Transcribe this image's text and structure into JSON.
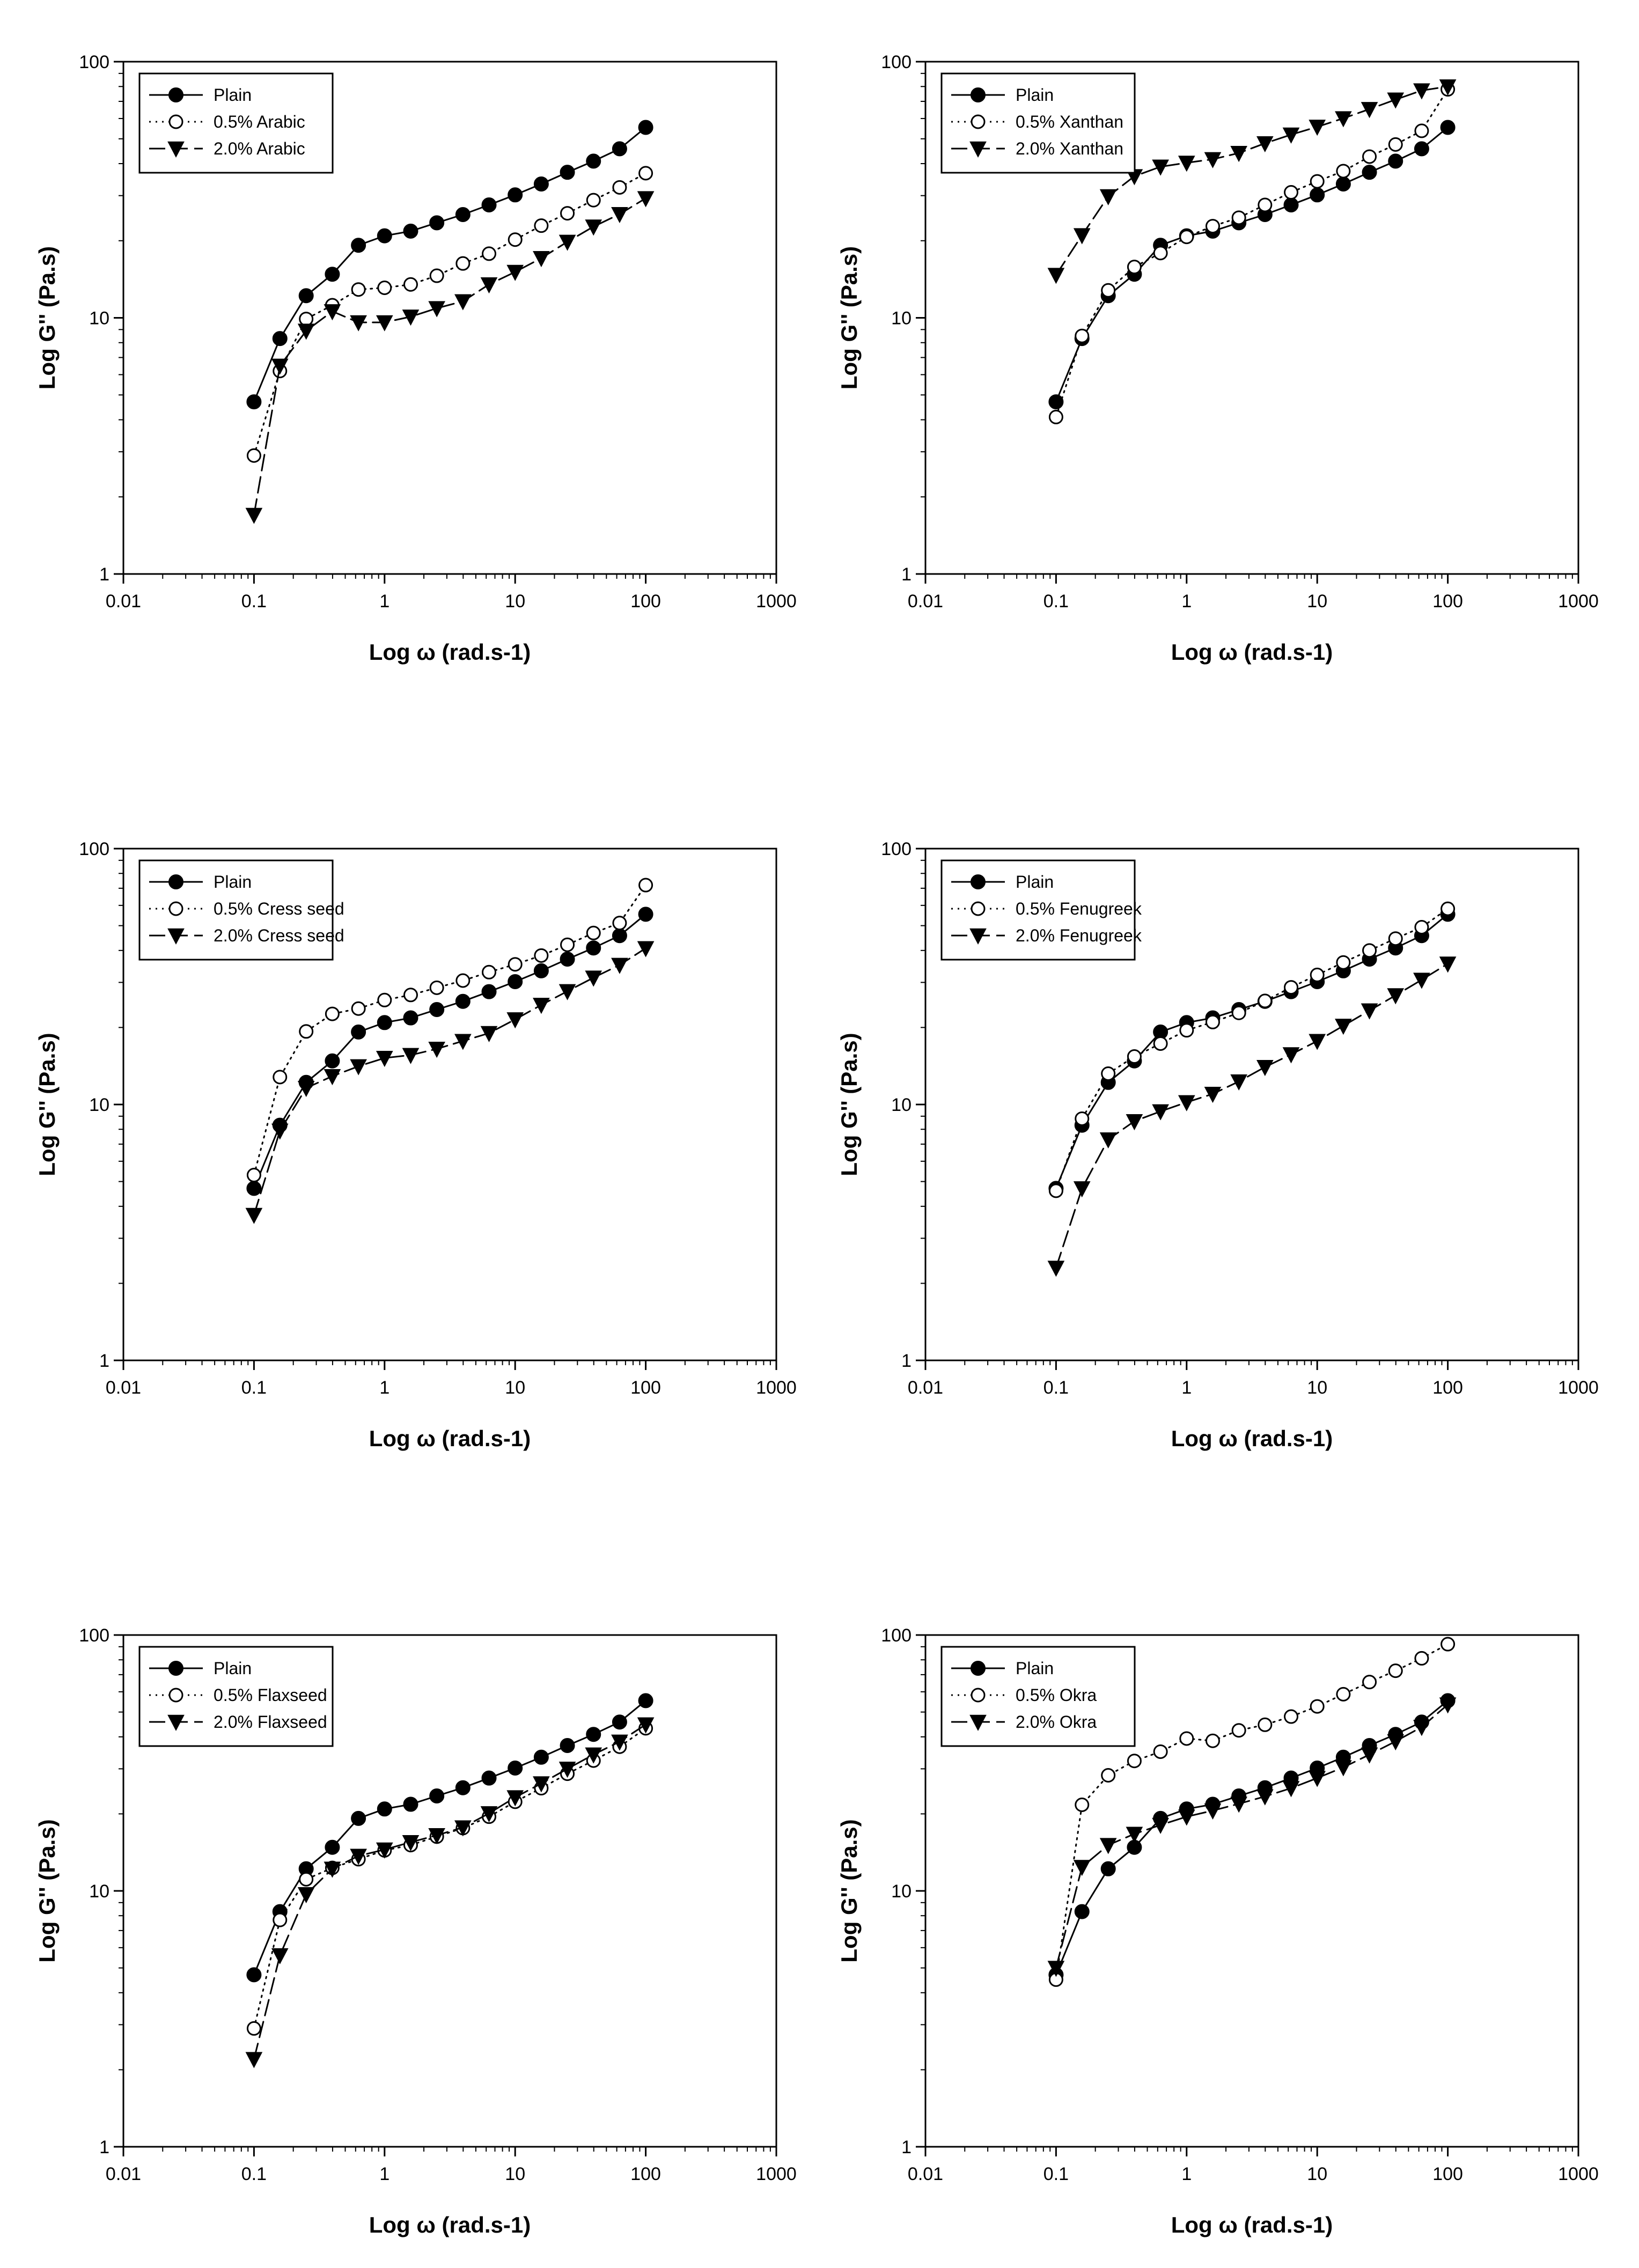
{
  "chart_data": [
    {
      "type": "line",
      "title": "",
      "xlabel": "Log ω (rad.s-1)",
      "ylabel": "Log  G'' (Pa.s)",
      "xscale": "log",
      "yscale": "log",
      "xlim": [
        0.01,
        1000
      ],
      "ylim": [
        1,
        100
      ],
      "xticks": [
        "0.01",
        "0.1",
        "1",
        "10",
        "100",
        "1000"
      ],
      "yticks": [
        "1",
        "10",
        "100"
      ],
      "legend_position": "top-left",
      "x": [
        0.1,
        0.158,
        0.251,
        0.398,
        0.631,
        1,
        1.585,
        2.512,
        3.981,
        6.31,
        10,
        15.85,
        25.12,
        39.81,
        63.1,
        100
      ],
      "series": [
        {
          "name": "Plain",
          "marker": "filled-circle",
          "line": "solid",
          "values": [
            4.7,
            8.3,
            12.2,
            14.8,
            19.2,
            20.9,
            21.8,
            23.5,
            25.3,
            27.6,
            30.2,
            33.3,
            37.0,
            40.9,
            45.7,
            55.4
          ]
        },
        {
          "name": "0.5% Arabic",
          "marker": "open-circle",
          "line": "dotted",
          "values": [
            2.9,
            6.2,
            9.9,
            11.2,
            12.9,
            13.1,
            13.5,
            14.6,
            16.3,
            17.8,
            20.2,
            22.9,
            25.6,
            28.8,
            32.3,
            36.7
          ]
        },
        {
          "name": "2.0% Arabic",
          "marker": "filled-triangle-down",
          "line": "dashed",
          "values": [
            1.7,
            6.5,
            8.9,
            10.6,
            9.6,
            9.6,
            10.1,
            10.9,
            11.6,
            13.5,
            15.1,
            17.1,
            19.8,
            22.7,
            25.4,
            29.3
          ]
        }
      ]
    },
    {
      "type": "line",
      "title": "",
      "xlabel": "Log ω (rad.s-1)",
      "ylabel": "Log  G'' (Pa.s)",
      "xscale": "log",
      "yscale": "log",
      "xlim": [
        0.01,
        1000
      ],
      "ylim": [
        1,
        100
      ],
      "xticks": [
        "0.01",
        "0.1",
        "1",
        "10",
        "100",
        "1000"
      ],
      "yticks": [
        "1",
        "10",
        "100"
      ],
      "legend_position": "top-left",
      "x": [
        0.1,
        0.158,
        0.251,
        0.398,
        0.631,
        1,
        1.585,
        2.512,
        3.981,
        6.31,
        10,
        15.85,
        25.12,
        39.81,
        63.1,
        100
      ],
      "series": [
        {
          "name": "Plain",
          "marker": "filled-circle",
          "line": "solid",
          "values": [
            4.7,
            8.3,
            12.2,
            14.8,
            19.2,
            20.9,
            21.8,
            23.5,
            25.3,
            27.6,
            30.2,
            33.3,
            37.0,
            40.9,
            45.7,
            55.4
          ]
        },
        {
          "name": "0.5% Xanthan",
          "marker": "open-circle",
          "line": "dotted",
          "values": [
            4.1,
            8.5,
            12.8,
            15.8,
            17.9,
            20.7,
            22.8,
            24.6,
            27.6,
            30.9,
            34.1,
            37.4,
            42.6,
            47.5,
            53.7,
            78.0
          ]
        },
        {
          "name": "2.0% Xanthan",
          "marker": "filled-triangle-down",
          "line": "dashed",
          "values": [
            14.7,
            21.0,
            29.8,
            35.7,
            38.9,
            40.3,
            41.6,
            44.0,
            48.0,
            51.9,
            55.7,
            60.1,
            65.3,
            71.1,
            77.2,
            80.0
          ]
        }
      ]
    },
    {
      "type": "line",
      "title": "",
      "xlabel": "Log ω (rad.s-1)",
      "ylabel": "Log  G'' (Pa.s)",
      "xscale": "log",
      "yscale": "log",
      "xlim": [
        0.01,
        1000
      ],
      "ylim": [
        1,
        100
      ],
      "xticks": [
        "0.01",
        "0.1",
        "1",
        "10",
        "100",
        "1000"
      ],
      "yticks": [
        "1",
        "10",
        "100"
      ],
      "legend_position": "top-left",
      "x": [
        0.1,
        0.158,
        0.251,
        0.398,
        0.631,
        1,
        1.585,
        2.512,
        3.981,
        6.31,
        10,
        15.85,
        25.12,
        39.81,
        63.1,
        100
      ],
      "series": [
        {
          "name": "Plain",
          "marker": "filled-circle",
          "line": "solid",
          "values": [
            4.7,
            8.3,
            12.2,
            14.8,
            19.2,
            20.9,
            21.8,
            23.5,
            25.3,
            27.6,
            30.2,
            33.3,
            37.0,
            40.9,
            45.7,
            55.4
          ]
        },
        {
          "name": "0.5% Cress seed",
          "marker": "open-circle",
          "line": "dotted",
          "values": [
            5.3,
            12.8,
            19.3,
            22.6,
            23.7,
            25.6,
            26.8,
            28.6,
            30.5,
            32.9,
            35.3,
            38.2,
            42.1,
            46.8,
            51.2,
            72.0
          ]
        },
        {
          "name": "2.0% Cress seed",
          "marker": "filled-triangle-down",
          "line": "dashed",
          "values": [
            3.7,
            7.9,
            11.6,
            12.9,
            14.1,
            15.2,
            15.6,
            16.5,
            17.7,
            19.0,
            21.5,
            24.5,
            27.7,
            31.3,
            35.1,
            40.8
          ]
        }
      ]
    },
    {
      "type": "line",
      "title": "",
      "xlabel": "Log ω (rad.s-1)",
      "ylabel": "Log  G'' (Pa.s)",
      "xscale": "log",
      "yscale": "log",
      "xlim": [
        0.01,
        1000
      ],
      "ylim": [
        1,
        100
      ],
      "xticks": [
        "0.01",
        "0.1",
        "1",
        "10",
        "100",
        "1000"
      ],
      "yticks": [
        "1",
        "10",
        "100"
      ],
      "legend_position": "top-left",
      "x": [
        0.1,
        0.158,
        0.251,
        0.398,
        0.631,
        1,
        1.585,
        2.512,
        3.981,
        6.31,
        10,
        15.85,
        25.12,
        39.81,
        63.1,
        100
      ],
      "series": [
        {
          "name": "Plain",
          "marker": "filled-circle",
          "line": "solid",
          "values": [
            4.7,
            8.3,
            12.2,
            14.8,
            19.2,
            20.9,
            21.8,
            23.5,
            25.3,
            27.6,
            30.2,
            33.3,
            37.0,
            40.9,
            45.7,
            55.4
          ]
        },
        {
          "name": "0.5% Fenugreek",
          "marker": "open-circle",
          "line": "dotted",
          "values": [
            4.6,
            8.8,
            13.2,
            15.4,
            17.3,
            19.5,
            21.0,
            22.8,
            25.4,
            28.7,
            32.1,
            35.9,
            40.0,
            44.5,
            49.3,
            58.2
          ]
        },
        {
          "name": "2.0% Fenugreek",
          "marker": "filled-triangle-down",
          "line": "dashed",
          "values": [
            2.3,
            4.7,
            7.3,
            8.6,
            9.4,
            10.2,
            11.0,
            12.3,
            14.0,
            15.7,
            17.7,
            20.3,
            23.3,
            26.7,
            30.7,
            35.5
          ]
        }
      ]
    },
    {
      "type": "line",
      "title": "",
      "xlabel": "Log ω (rad.s-1)",
      "ylabel": "Log  G'' (Pa.s)",
      "xscale": "log",
      "yscale": "log",
      "xlim": [
        0.01,
        1000
      ],
      "ylim": [
        1,
        100
      ],
      "xticks": [
        "0.01",
        "0.1",
        "1",
        "10",
        "100",
        "1000"
      ],
      "yticks": [
        "1",
        "10",
        "100"
      ],
      "legend_position": "top-left",
      "x": [
        0.1,
        0.158,
        0.251,
        0.398,
        0.631,
        1,
        1.585,
        2.512,
        3.981,
        6.31,
        10,
        15.85,
        25.12,
        39.81,
        63.1,
        100
      ],
      "series": [
        {
          "name": "Plain",
          "marker": "filled-circle",
          "line": "solid",
          "values": [
            4.7,
            8.3,
            12.2,
            14.8,
            19.2,
            20.9,
            21.8,
            23.5,
            25.3,
            27.6,
            30.2,
            33.3,
            37.0,
            40.9,
            45.7,
            55.4
          ]
        },
        {
          "name": "0.5% Flaxseed",
          "marker": "open-circle",
          "line": "dotted",
          "values": [
            2.9,
            7.7,
            11.1,
            12.3,
            13.3,
            14.4,
            15.1,
            16.3,
            17.6,
            19.5,
            22.3,
            25.2,
            28.7,
            32.3,
            36.6,
            43.2
          ]
        },
        {
          "name": "2.0% Flaxseed",
          "marker": "filled-triangle-down",
          "line": "dashed",
          "values": [
            2.2,
            5.6,
            9.7,
            12.2,
            13.7,
            14.5,
            15.5,
            16.5,
            17.7,
            20.1,
            23.2,
            26.3,
            30.0,
            34.1,
            38.3,
            44.7
          ]
        }
      ]
    },
    {
      "type": "line",
      "title": "",
      "xlabel": "Log ω (rad.s-1)",
      "ylabel": "Log  G'' (Pa.s)",
      "xscale": "log",
      "yscale": "log",
      "xlim": [
        0.01,
        1000
      ],
      "ylim": [
        1,
        100
      ],
      "xticks": [
        "0.01",
        "0.1",
        "1",
        "10",
        "100",
        "1000"
      ],
      "yticks": [
        "1",
        "10",
        "100"
      ],
      "legend_position": "top-left",
      "x": [
        0.1,
        0.158,
        0.251,
        0.398,
        0.631,
        1,
        1.585,
        2.512,
        3.981,
        6.31,
        10,
        15.85,
        25.12,
        39.81,
        63.1,
        100
      ],
      "series": [
        {
          "name": "Plain",
          "marker": "filled-circle",
          "line": "solid",
          "values": [
            4.7,
            8.3,
            12.2,
            14.8,
            19.2,
            20.9,
            21.8,
            23.5,
            25.3,
            27.6,
            30.2,
            33.3,
            37.0,
            40.9,
            45.7,
            55.4
          ]
        },
        {
          "name": "0.5% Okra",
          "marker": "open-circle",
          "line": "dotted",
          "values": [
            4.5,
            21.7,
            28.3,
            32.2,
            35.0,
            39.4,
            38.6,
            42.4,
            44.6,
            48.0,
            52.6,
            58.7,
            65.5,
            72.5,
            81.1,
            92.1
          ]
        },
        {
          "name": "2.0% Okra",
          "marker": "filled-triangle-down",
          "line": "dashed",
          "values": [
            5.0,
            12.4,
            15.1,
            16.7,
            18.1,
            19.5,
            20.6,
            21.9,
            23.4,
            25.2,
            27.6,
            30.4,
            34.1,
            38.4,
            43.7,
            53.5
          ]
        }
      ]
    }
  ]
}
